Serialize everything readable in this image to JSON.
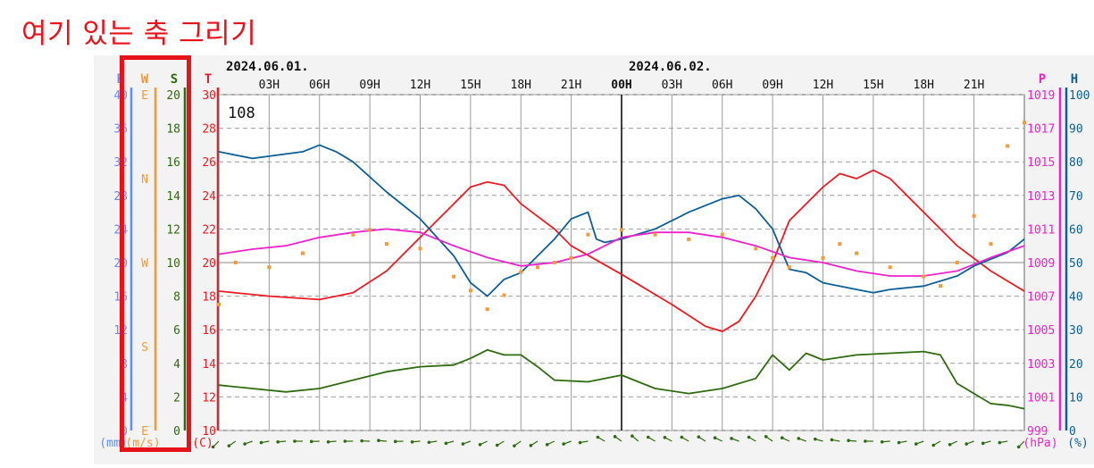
{
  "annotation": "여기 있는 축 그리기",
  "colors": {
    "annotation": "#e8121b",
    "rain": "#5b8ff9",
    "wind_dir": "#f59a38",
    "wind_speed": "#2f6b10",
    "temperature": "#ee1b24",
    "pressure": "#ee22cc",
    "humidity": "#0c5e96",
    "grid": "#9c9c9c",
    "background": "#f3f3f3",
    "plot_background": "#ffffff"
  },
  "station_id": "108",
  "chart_data": {
    "type": "line",
    "dates": [
      {
        "label": "2024.06.01.",
        "at_hour": 0
      },
      {
        "label": "2024.06.02.",
        "at_hour": 24
      }
    ],
    "x_hours": [
      0,
      48
    ],
    "x_tick_labels": [
      "",
      "03H",
      "06H",
      "09H",
      "12H",
      "15H",
      "18H",
      "21H",
      "00H",
      "03H",
      "06H",
      "09H",
      "12H",
      "15H",
      "18H",
      "21H"
    ],
    "axes": [
      {
        "key": "rain",
        "title": "R",
        "unit": "(mm)",
        "ticks": [
          "40",
          "36",
          "32",
          "28",
          "24",
          "20",
          "16",
          "12",
          "8",
          "4",
          "0"
        ]
      },
      {
        "key": "wind_dir",
        "title": "W",
        "unit": "(m/s)",
        "ticks": [
          "E",
          "N",
          "W",
          "S",
          "E"
        ]
      },
      {
        "key": "wind_speed",
        "title": "S",
        "unit": "",
        "ticks": [
          "20",
          "18",
          "16",
          "14",
          "12",
          "10",
          "8",
          "6",
          "4",
          "2",
          "0"
        ]
      },
      {
        "key": "temperature",
        "title": "T",
        "unit": "(C)",
        "ticks": [
          "30",
          "28",
          "26",
          "24",
          "22",
          "20",
          "18",
          "16",
          "14",
          "12",
          "10"
        ]
      },
      {
        "key": "pressure",
        "title": "P",
        "unit": "(hPa)",
        "ticks": [
          "1019",
          "1017",
          "1015",
          "1013",
          "1011",
          "1009",
          "1007",
          "1005",
          "1003",
          "1001",
          "999"
        ]
      },
      {
        "key": "humidity",
        "title": "H",
        "unit": "(%)",
        "ticks": [
          "100",
          "90",
          "80",
          "70",
          "60",
          "50",
          "40",
          "30",
          "20",
          "10",
          "0"
        ]
      }
    ],
    "ylim": {
      "temperature": [
        10,
        30
      ],
      "wind_speed": [
        0,
        20
      ],
      "pressure": [
        999,
        1019
      ],
      "humidity": [
        0,
        100
      ],
      "wind_dir_deg": [
        90,
        450
      ]
    },
    "grid": true,
    "series": [
      {
        "key": "temperature",
        "points": [
          [
            0,
            18.3
          ],
          [
            3,
            18.0
          ],
          [
            6,
            17.8
          ],
          [
            8,
            18.2
          ],
          [
            10,
            19.5
          ],
          [
            12,
            21.5
          ],
          [
            14,
            23.5
          ],
          [
            15,
            24.5
          ],
          [
            16,
            24.8
          ],
          [
            17,
            24.6
          ],
          [
            18,
            23.5
          ],
          [
            20,
            22.0
          ],
          [
            21,
            21.0
          ],
          [
            24,
            19.3
          ],
          [
            27,
            17.5
          ],
          [
            29,
            16.2
          ],
          [
            30,
            15.9
          ],
          [
            31,
            16.5
          ],
          [
            32,
            18.0
          ],
          [
            33,
            20.0
          ],
          [
            34,
            22.5
          ],
          [
            36,
            24.5
          ],
          [
            37,
            25.3
          ],
          [
            38,
            25.0
          ],
          [
            39,
            25.5
          ],
          [
            40,
            25.0
          ],
          [
            42,
            23.0
          ],
          [
            44,
            21.0
          ],
          [
            46,
            19.5
          ],
          [
            48,
            18.3
          ]
        ]
      },
      {
        "key": "humidity",
        "points": [
          [
            0,
            83
          ],
          [
            2,
            81
          ],
          [
            5,
            83
          ],
          [
            6,
            85
          ],
          [
            7,
            83
          ],
          [
            8,
            80
          ],
          [
            10,
            71
          ],
          [
            12,
            63
          ],
          [
            14,
            52
          ],
          [
            15,
            44
          ],
          [
            16,
            40
          ],
          [
            17,
            45
          ],
          [
            18,
            47
          ],
          [
            19,
            52
          ],
          [
            20,
            57
          ],
          [
            21,
            63
          ],
          [
            22,
            65
          ],
          [
            22.5,
            57
          ],
          [
            23,
            56
          ],
          [
            24,
            57
          ],
          [
            26,
            60
          ],
          [
            28,
            65
          ],
          [
            30,
            69
          ],
          [
            31,
            70
          ],
          [
            32,
            66
          ],
          [
            33,
            60
          ],
          [
            34,
            48
          ],
          [
            35,
            47
          ],
          [
            36,
            44
          ],
          [
            38,
            42
          ],
          [
            39,
            41
          ],
          [
            40,
            42
          ],
          [
            42,
            43
          ],
          [
            44,
            46
          ],
          [
            45,
            49
          ],
          [
            46,
            51
          ],
          [
            47,
            53
          ],
          [
            48,
            57
          ]
        ]
      },
      {
        "key": "pressure",
        "points": [
          [
            0,
            1009.5
          ],
          [
            2,
            1009.8
          ],
          [
            4,
            1010.0
          ],
          [
            6,
            1010.5
          ],
          [
            8,
            1010.8
          ],
          [
            10,
            1011.0
          ],
          [
            12,
            1010.8
          ],
          [
            14,
            1010.0
          ],
          [
            16,
            1009.3
          ],
          [
            18,
            1008.8
          ],
          [
            20,
            1009.0
          ],
          [
            22,
            1009.5
          ],
          [
            24,
            1010.5
          ],
          [
            26,
            1010.8
          ],
          [
            28,
            1010.8
          ],
          [
            30,
            1010.5
          ],
          [
            32,
            1010.0
          ],
          [
            34,
            1009.3
          ],
          [
            36,
            1009.0
          ],
          [
            38,
            1008.5
          ],
          [
            40,
            1008.2
          ],
          [
            42,
            1008.2
          ],
          [
            44,
            1008.5
          ],
          [
            46,
            1009.3
          ],
          [
            48,
            1010.0
          ]
        ]
      },
      {
        "key": "wind_speed",
        "points": [
          [
            0,
            2.7
          ],
          [
            2,
            2.5
          ],
          [
            4,
            2.3
          ],
          [
            6,
            2.5
          ],
          [
            8,
            3.0
          ],
          [
            10,
            3.5
          ],
          [
            12,
            3.8
          ],
          [
            14,
            3.9
          ],
          [
            15,
            4.3
          ],
          [
            16,
            4.8
          ],
          [
            17,
            4.5
          ],
          [
            18,
            4.5
          ],
          [
            19,
            3.8
          ],
          [
            20,
            3.0
          ],
          [
            22,
            2.9
          ],
          [
            24,
            3.3
          ],
          [
            26,
            2.5
          ],
          [
            28,
            2.2
          ],
          [
            30,
            2.5
          ],
          [
            32,
            3.1
          ],
          [
            33,
            4.5
          ],
          [
            34,
            3.6
          ],
          [
            35,
            4.6
          ],
          [
            36,
            4.2
          ],
          [
            38,
            4.5
          ],
          [
            40,
            4.6
          ],
          [
            42,
            4.7
          ],
          [
            43,
            4.5
          ],
          [
            44,
            2.8
          ],
          [
            46,
            1.6
          ],
          [
            47,
            1.5
          ],
          [
            48,
            1.3
          ]
        ]
      },
      {
        "key": "wind_dir",
        "points": [
          [
            0,
            225
          ],
          [
            1,
            270
          ],
          [
            3,
            265
          ],
          [
            5,
            280
          ],
          [
            8,
            300
          ],
          [
            9,
            305
          ],
          [
            10,
            290
          ],
          [
            12,
            285
          ],
          [
            14,
            255
          ],
          [
            15,
            240
          ],
          [
            16,
            220
          ],
          [
            17,
            235
          ],
          [
            18,
            260
          ],
          [
            19,
            265
          ],
          [
            20,
            270
          ],
          [
            21,
            275
          ],
          [
            22,
            300
          ],
          [
            24,
            305
          ],
          [
            26,
            300
          ],
          [
            28,
            295
          ],
          [
            30,
            300
          ],
          [
            32,
            285
          ],
          [
            33,
            275
          ],
          [
            34,
            265
          ],
          [
            36,
            275
          ],
          [
            37,
            290
          ],
          [
            38,
            280
          ],
          [
            40,
            265
          ],
          [
            42,
            255
          ],
          [
            43,
            245
          ],
          [
            44,
            270
          ],
          [
            45,
            320
          ],
          [
            46,
            290
          ],
          [
            47,
            395
          ],
          [
            48,
            420
          ]
        ]
      }
    ],
    "wind_arrow_hours": [
      0,
      1,
      2,
      3,
      4,
      5,
      6,
      7,
      8,
      9,
      10,
      11,
      12,
      13,
      14,
      15,
      16,
      17,
      18,
      19,
      20,
      21,
      22,
      23,
      24,
      25,
      26,
      27,
      28,
      29,
      30,
      31,
      32,
      33,
      34,
      35,
      36,
      37,
      38,
      39,
      40,
      41,
      42,
      43,
      44,
      45,
      46,
      47,
      48
    ],
    "wind_arrow_deg": [
      225,
      235,
      250,
      260,
      265,
      270,
      268,
      265,
      270,
      272,
      275,
      268,
      265,
      262,
      255,
      250,
      245,
      240,
      235,
      238,
      245,
      250,
      260,
      300,
      305,
      310,
      300,
      298,
      300,
      302,
      295,
      290,
      300,
      305,
      295,
      290,
      285,
      280,
      275,
      270,
      265,
      260,
      250,
      240,
      245,
      250,
      255,
      260,
      225
    ]
  }
}
